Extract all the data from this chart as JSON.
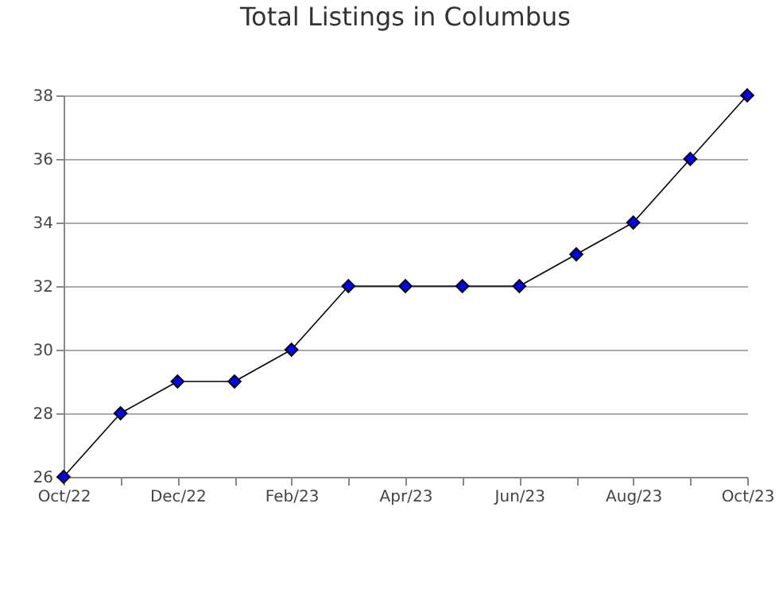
{
  "chart_data": {
    "type": "line",
    "title": "Total Listings in Columbus",
    "categories": [
      "Oct/22",
      null,
      "Dec/22",
      null,
      "Feb/23",
      null,
      "Apr/23",
      null,
      "Jun/23",
      null,
      "Aug/23",
      null,
      "Oct/23"
    ],
    "series": [
      {
        "color": "#0000ff",
        "values": [
          26,
          28,
          29,
          29,
          30,
          32,
          32,
          32,
          32,
          33,
          34,
          36,
          38
        ]
      }
    ],
    "ylim": [
      26,
      38
    ],
    "yticks": [
      26,
      28,
      30,
      32,
      34,
      36,
      38
    ],
    "grid": "y",
    "marker": "diamond",
    "line_style": "solid"
  }
}
